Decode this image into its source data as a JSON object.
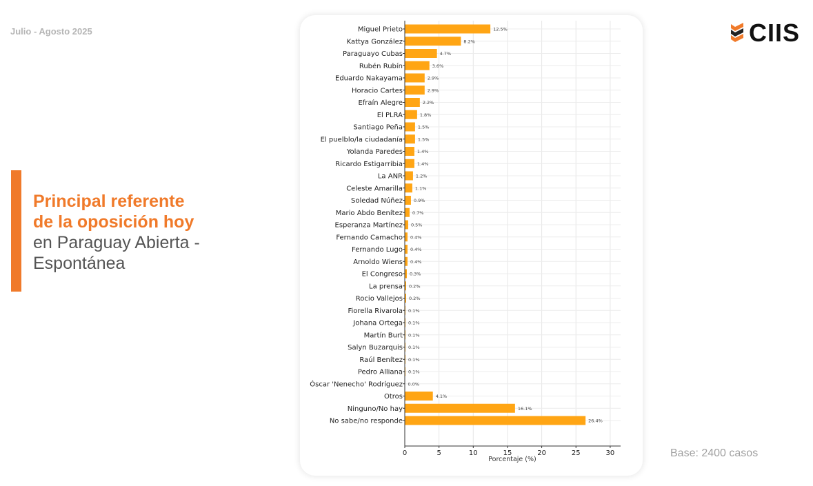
{
  "header": {
    "date": "Julio - Agosto 2025",
    "logo_text": "CIIS"
  },
  "title": {
    "line1": "Principal referente",
    "line2": "de la oposición hoy",
    "line3": "en Paraguay Abierta -",
    "line4": "Espontánea"
  },
  "footer": {
    "base": "Base: 2400 casos"
  },
  "colors": {
    "bar": "#ffa514",
    "accent": "#f07a2a"
  },
  "chart_data": {
    "type": "bar",
    "orientation": "horizontal",
    "categories": [
      "Miguel Prieto",
      "Kattya González",
      "Paraguayo Cubas",
      "Rubén Rubín",
      "Eduardo Nakayama",
      "Horacio Cartes",
      "Efraín Alegre",
      "El PLRA",
      "Santiago Peña",
      "El puelblo/la ciudadanía",
      "Yolanda Paredes",
      "Ricardo Estigarribia",
      "La ANR",
      "Celeste Amarilla",
      "Soledad Núñez",
      "Mario Abdo Benítez",
      "Esperanza Martínez",
      "Fernando Camacho",
      "Fernando Lugo",
      "Arnoldo Wiens",
      "El Congreso",
      "La prensa",
      "Rocio Vallejos",
      "Fiorella Rivarola",
      "Johana Ortega",
      "Martín Burt",
      "Salyn Buzarquis",
      "Raúl Benítez",
      "Pedro Alliana",
      "Óscar 'Nenecho' Rodríguez",
      "Otros",
      "Ninguno/No hay",
      "No sabe/no responde"
    ],
    "values": [
      12.5,
      8.2,
      4.7,
      3.6,
      2.9,
      2.9,
      2.2,
      1.8,
      1.5,
      1.5,
      1.4,
      1.4,
      1.2,
      1.1,
      0.9,
      0.7,
      0.5,
      0.4,
      0.4,
      0.4,
      0.3,
      0.2,
      0.2,
      0.1,
      0.1,
      0.1,
      0.1,
      0.1,
      0.1,
      0.0,
      4.1,
      16.1,
      26.4
    ],
    "data_labels": [
      "12.5%",
      "8.2%",
      "4.7%",
      "3.6%",
      "2.9%",
      "2.9%",
      "2.2%",
      "1.8%",
      "1.5%",
      "1.5%",
      "1.4%",
      "1.4%",
      "1.2%",
      "1.1%",
      "0.9%",
      "0.7%",
      "0.5%",
      "0.4%",
      "0.4%",
      "0.4%",
      "0.3%",
      "0.2%",
      "0.2%",
      "0.1%",
      "0.1%",
      "0.1%",
      "0.1%",
      "0.1%",
      "0.1%",
      "0.0%",
      "4.1%",
      "16.1%",
      "26.4%"
    ],
    "xlabel": "Porcentaje (%)",
    "ylabel": "",
    "xlim": [
      0,
      31.5
    ],
    "xticks": [
      "0",
      "5",
      "10",
      "15",
      "20",
      "25",
      "30"
    ],
    "grid": true
  }
}
